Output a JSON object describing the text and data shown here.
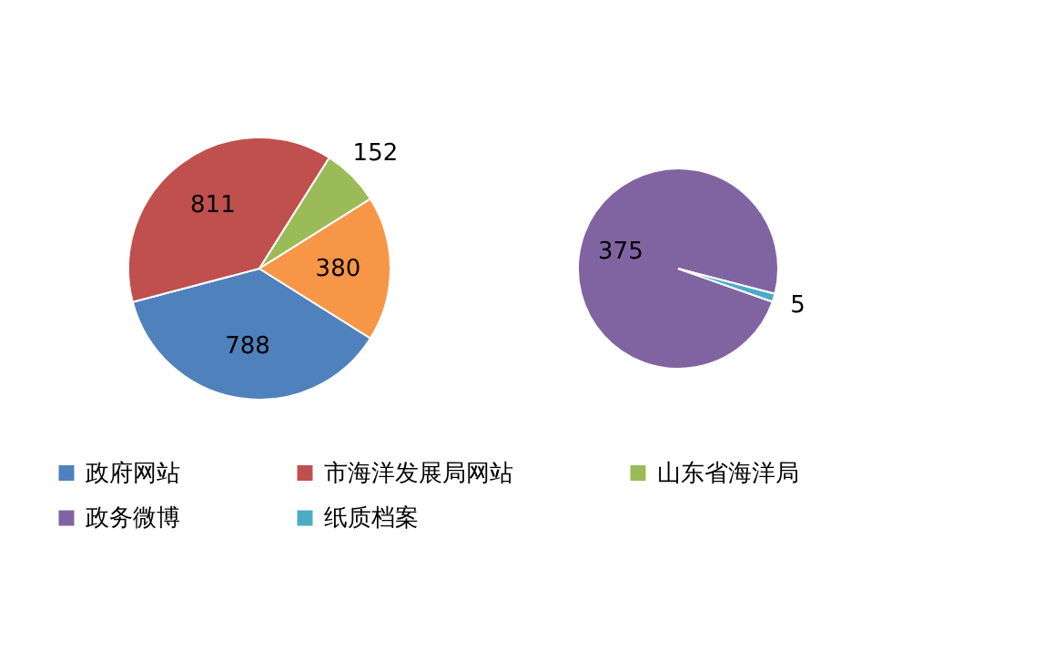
{
  "chart_data": [
    {
      "type": "pie",
      "categories": [
        "政府网站",
        "市海洋发展局网站",
        "山东省海洋局",
        null
      ],
      "values": [
        788,
        811,
        152,
        380
      ],
      "colors": [
        "#4f81bd",
        "#c0504d",
        "#9bbb59",
        "#f79646"
      ],
      "data_labels": true,
      "legend": "bottom"
    },
    {
      "type": "pie",
      "categories": [
        "政务微博",
        "纸质档案"
      ],
      "values": [
        375,
        5
      ],
      "colors": [
        "#8064a2",
        "#4bacc6"
      ],
      "data_labels": true,
      "legend": "bottom"
    }
  ]
}
